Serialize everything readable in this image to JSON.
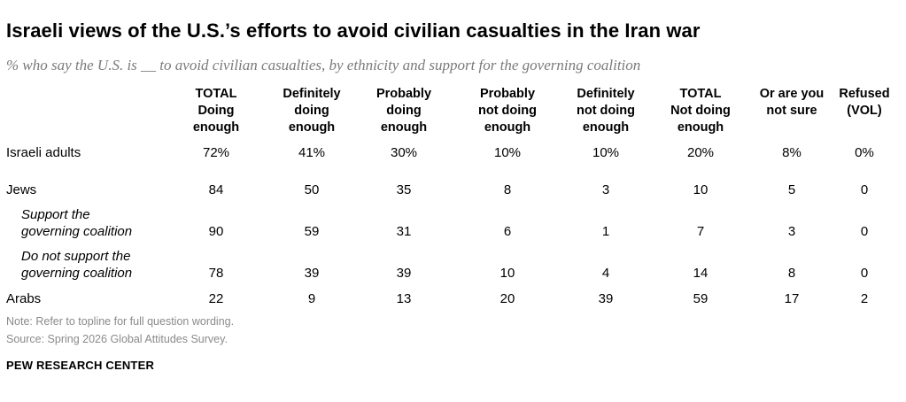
{
  "title": "Israeli views of the U.S.’s efforts to avoid civilian casualties in the Iran war",
  "subtitle": "% who say the U.S. is __ to avoid civilian casualties, by ethnicity and support for the governing coalition",
  "note": "Note: Refer to topline for full question wording.",
  "source": "Source: Spring 2026 Global Attitudes Survey.",
  "brand": "PEW RESEARCH CENTER",
  "chart_data": {
    "type": "table",
    "title": "Israeli views of the U.S.’s efforts to avoid civilian casualties in the Iran war",
    "columns": [
      {
        "lines": [
          "TOTAL",
          "Doing",
          "enough"
        ]
      },
      {
        "lines": [
          "Definitely",
          "doing",
          "enough"
        ]
      },
      {
        "lines": [
          "Probably",
          "doing",
          "enough"
        ]
      },
      {
        "lines": [
          "Probably",
          "not doing",
          "enough"
        ]
      },
      {
        "lines": [
          "Definitely",
          "not doing",
          "enough"
        ]
      },
      {
        "lines": [
          "TOTAL",
          "Not doing",
          "enough"
        ]
      },
      {
        "lines": [
          "Or are you",
          "not sure"
        ]
      },
      {
        "lines": [
          "Refused",
          "(VOL)"
        ]
      }
    ],
    "rows": [
      {
        "label": [
          "Israeli adults"
        ],
        "sub": false,
        "values": [
          "72%",
          "41%",
          "30%",
          "10%",
          "10%",
          "20%",
          "8%",
          "0%"
        ]
      },
      {
        "label": [
          "Jews"
        ],
        "sub": false,
        "values": [
          "84",
          "50",
          "35",
          "8",
          "3",
          "10",
          "5",
          "0"
        ]
      },
      {
        "label": [
          "Support the",
          "governing coalition"
        ],
        "sub": true,
        "values": [
          "90",
          "59",
          "31",
          "6",
          "1",
          "7",
          "3",
          "0"
        ]
      },
      {
        "label": [
          "Do not support the",
          "governing coalition"
        ],
        "sub": true,
        "values": [
          "78",
          "39",
          "39",
          "10",
          "4",
          "14",
          "8",
          "0"
        ]
      },
      {
        "label": [
          "Arabs"
        ],
        "sub": false,
        "values": [
          "22",
          "9",
          "13",
          "20",
          "39",
          "59",
          "17",
          "2"
        ]
      }
    ]
  }
}
